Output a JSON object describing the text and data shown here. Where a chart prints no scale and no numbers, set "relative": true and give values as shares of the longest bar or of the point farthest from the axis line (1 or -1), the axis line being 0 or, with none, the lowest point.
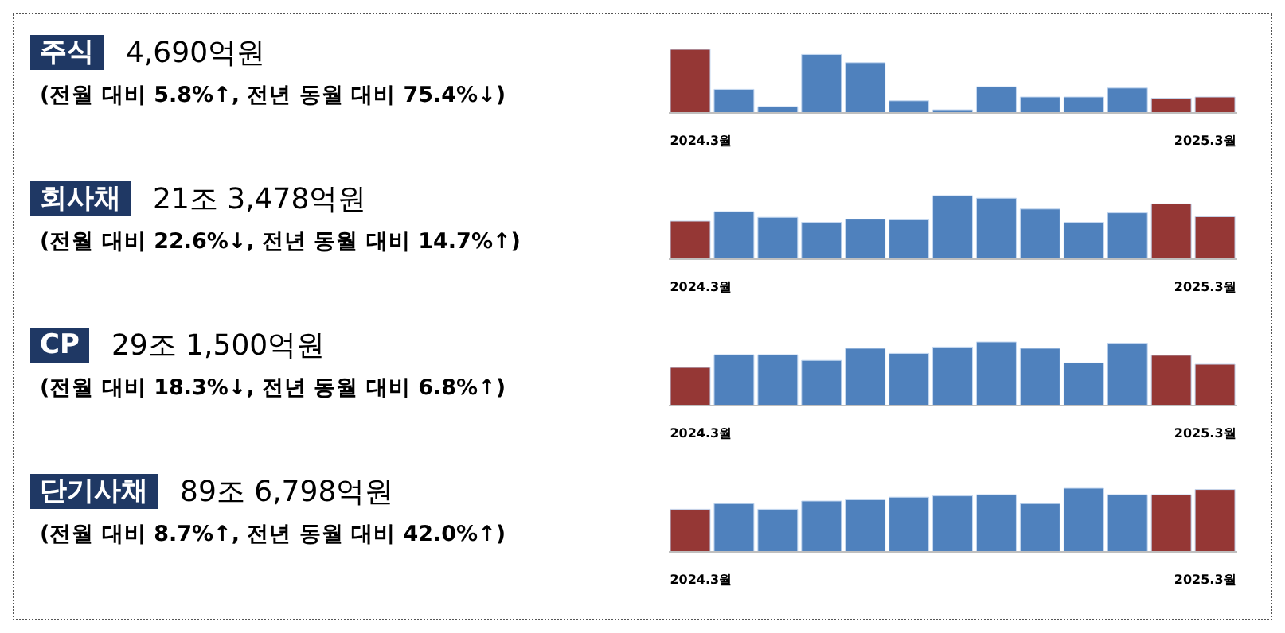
{
  "chart_data": [
    {
      "type": "other",
      "title": "주식",
      "subtitle": "4,690억원",
      "annotations": [
        "(전월 대비 5.8%↑, 전년 동월 대비 75.4%↓)"
      ]
    },
    {
      "type": "bar",
      "relative": true,
      "categories": [
        "2024.3월",
        null,
        null,
        null,
        null,
        null,
        null,
        null,
        null,
        null,
        null,
        null,
        "2025.3월"
      ],
      "values": [
        1,
        0.37,
        0.1,
        0.92,
        0.79,
        0.19,
        0.05,
        0.41,
        0.25,
        0.25,
        0.39,
        0.23,
        0.25
      ],
      "colors": [
        "#953735",
        "#4f81bd",
        "#4f81bd",
        "#4f81bd",
        "#4f81bd",
        "#4f81bd",
        "#4f81bd",
        "#4f81bd",
        "#4f81bd",
        "#4f81bd",
        "#4f81bd",
        "#953735",
        "#953735"
      ]
    },
    {
      "type": "other",
      "title": "회사채",
      "subtitle": "21조 3,478억원",
      "annotations": [
        "(전월 대비 22.6%↓, 전년 동월 대비 14.7%↑)"
      ]
    },
    {
      "type": "bar",
      "relative": true,
      "categories": [
        "2024.3월",
        null,
        null,
        null,
        null,
        null,
        null,
        null,
        null,
        null,
        null,
        null,
        "2025.3월"
      ],
      "values": [
        0.6,
        0.75,
        0.66,
        0.58,
        0.63,
        0.62,
        1,
        0.96,
        0.79,
        0.58,
        0.73,
        0.87,
        0.67
      ],
      "colors": [
        "#953735",
        "#4f81bd",
        "#4f81bd",
        "#4f81bd",
        "#4f81bd",
        "#4f81bd",
        "#4f81bd",
        "#4f81bd",
        "#4f81bd",
        "#4f81bd",
        "#4f81bd",
        "#953735",
        "#953735"
      ]
    },
    {
      "type": "other",
      "title": "CP",
      "subtitle": "29조 1,500억원",
      "annotations": [
        "(전월 대비 18.3%↓, 전년 동월 대비 6.8%↑)"
      ]
    },
    {
      "type": "bar",
      "relative": true,
      "categories": [
        "2024.3월",
        null,
        null,
        null,
        null,
        null,
        null,
        null,
        null,
        null,
        null,
        null,
        "2025.3월"
      ],
      "values": [
        0.6,
        0.8,
        0.8,
        0.71,
        0.9,
        0.82,
        0.92,
        1,
        0.9,
        0.67,
        0.98,
        0.79,
        0.65
      ],
      "colors": [
        "#953735",
        "#4f81bd",
        "#4f81bd",
        "#4f81bd",
        "#4f81bd",
        "#4f81bd",
        "#4f81bd",
        "#4f81bd",
        "#4f81bd",
        "#4f81bd",
        "#4f81bd",
        "#953735",
        "#953735"
      ]
    },
    {
      "type": "other",
      "title": "단기사채",
      "subtitle": "89조 6,798억원",
      "annotations": [
        "(전월 대비 8.7%↑, 전년 동월 대비 42.0%↑)"
      ]
    },
    {
      "type": "bar",
      "relative": true,
      "categories": [
        "2024.3월",
        null,
        null,
        null,
        null,
        null,
        null,
        null,
        null,
        null,
        null,
        null,
        "2025.3월"
      ],
      "values": [
        0.67,
        0.76,
        0.67,
        0.8,
        0.82,
        0.86,
        0.88,
        0.9,
        0.76,
        1,
        0.9,
        0.9,
        0.98
      ],
      "colors": [
        "#953735",
        "#4f81bd",
        "#4f81bd",
        "#4f81bd",
        "#4f81bd",
        "#4f81bd",
        "#4f81bd",
        "#4f81bd",
        "#4f81bd",
        "#4f81bd",
        "#4f81bd",
        "#953735",
        "#953735"
      ]
    }
  ]
}
